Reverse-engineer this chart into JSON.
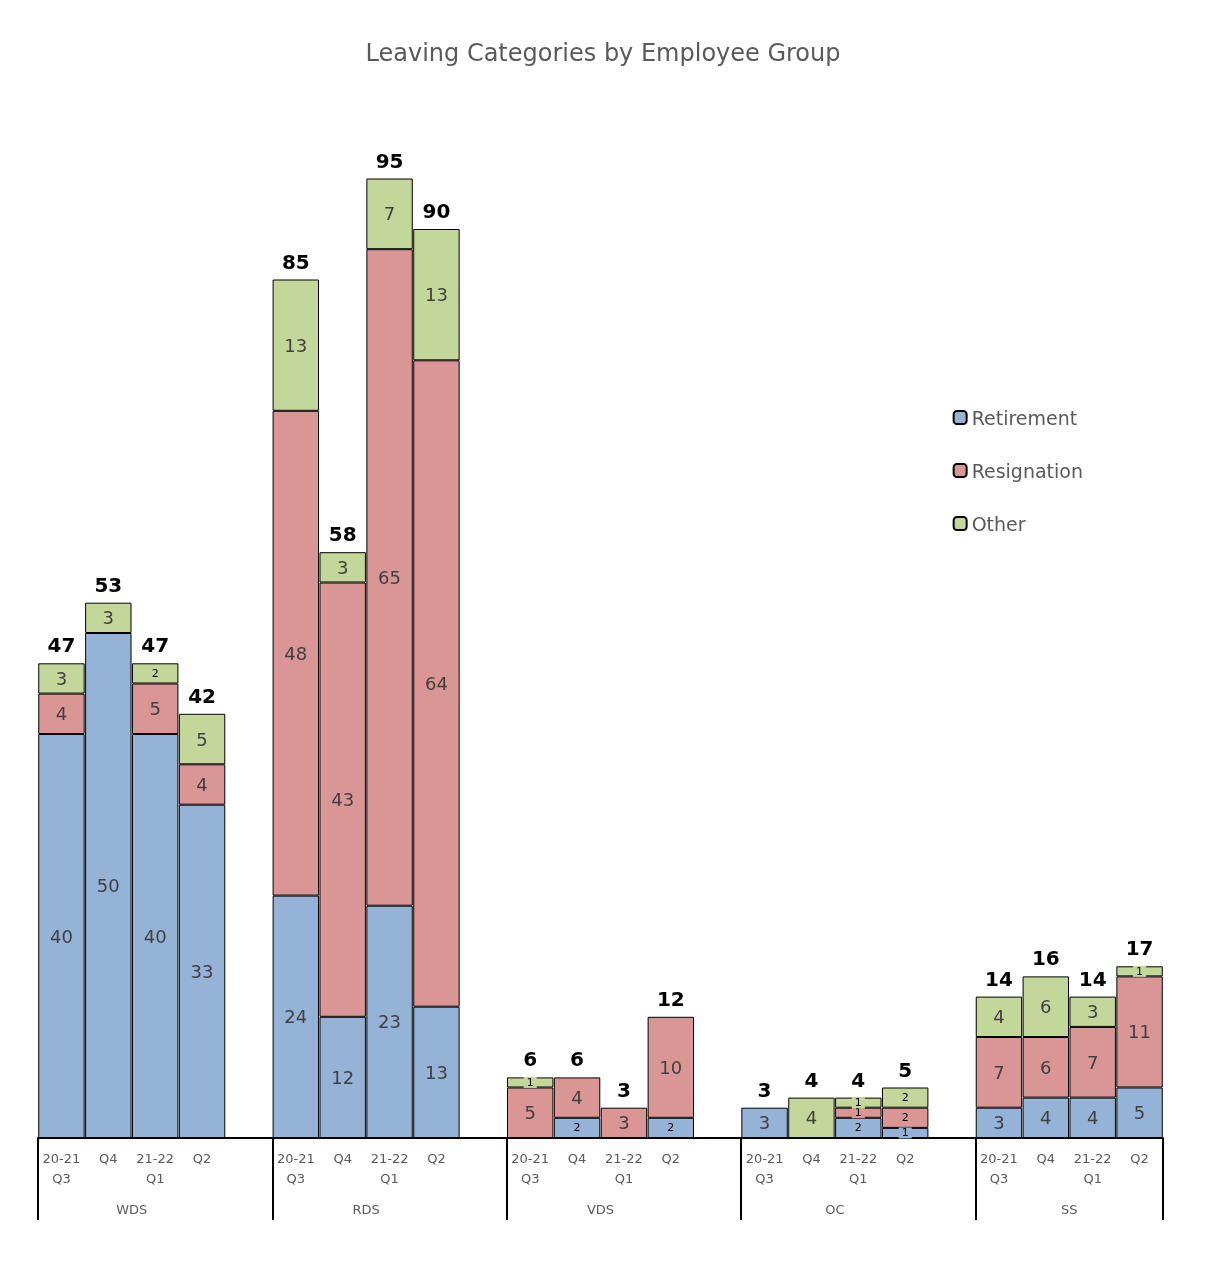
{
  "chart_data": {
    "type": "bar",
    "title": "Leaving Categories by Employee Group",
    "stacked": true,
    "data_labels": true,
    "legend": "right",
    "categories": [
      "20-21\nQ3",
      "Q4",
      "21-22\nQ1",
      "Q2",
      null,
      "20-21\nQ3",
      "Q4",
      "21-22\nQ1",
      "Q2",
      null,
      "20-21\nQ3",
      "Q4",
      "21-22\nQ1",
      "Q2",
      null,
      "20-21\nQ3",
      "Q4",
      "21-22\nQ1",
      "Q2",
      null,
      "20-21\nQ3",
      "Q4",
      "21-22\nQ1",
      "Q2"
    ],
    "series": [
      {
        "name": "Retirement",
        "color": "#95b3d7",
        "values": [
          40,
          50,
          40,
          33,
          null,
          24,
          12,
          23,
          13,
          null,
          null,
          2,
          null,
          2,
          null,
          3,
          null,
          2,
          1,
          null,
          3,
          4,
          4,
          5
        ]
      },
      {
        "name": "Resignation",
        "color": "#da9694",
        "values": [
          4,
          null,
          5,
          4,
          null,
          48,
          43,
          65,
          64,
          null,
          5,
          4,
          3,
          10,
          null,
          null,
          null,
          1,
          2,
          null,
          7,
          6,
          7,
          11
        ]
      },
      {
        "name": "Other",
        "color": "#c4d79b",
        "values": [
          3,
          3,
          2,
          5,
          null,
          13,
          3,
          7,
          13,
          null,
          1,
          null,
          null,
          null,
          null,
          null,
          4,
          1,
          2,
          null,
          4,
          6,
          3,
          1
        ]
      }
    ],
    "totals": [
      "47",
      "53",
      "47",
      "42",
      null,
      "85",
      "58",
      "95",
      "90",
      null,
      "6",
      "6",
      "3",
      "12",
      null,
      "3",
      "4",
      "4",
      "5",
      null,
      "14",
      "16",
      "14",
      "17"
    ],
    "annotations": [
      "WDS",
      "RDS",
      "VDS",
      "OC",
      "SS"
    ]
  }
}
